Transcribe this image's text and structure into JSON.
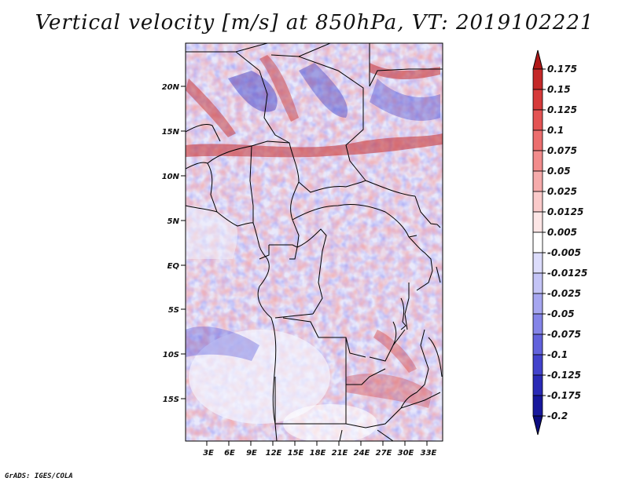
{
  "title": "Vertical velocity [m/s] at 850hPa, VT: 2019102221",
  "credit": "GrADS: IGES/COLA",
  "map": {
    "lat_labels": [
      "20N",
      "15N",
      "10N",
      "5N",
      "EQ",
      "5S",
      "10S",
      "15S"
    ],
    "lon_labels": [
      "3E",
      "6E",
      "9E",
      "12E",
      "15E",
      "18E",
      "21E",
      "24E",
      "27E",
      "30E",
      "33E"
    ]
  },
  "colorbar": {
    "labels": [
      "0.175",
      "0.15",
      "0.125",
      "0.1",
      "0.075",
      "0.05",
      "0.025",
      "0.0125",
      "0.005",
      "-0.005",
      "-0.0125",
      "-0.025",
      "-0.05",
      "-0.075",
      "-0.1",
      "-0.125",
      "-0.175",
      "-0.2"
    ],
    "colors": [
      "#b01818",
      "#c42828",
      "#d63a3a",
      "#e45454",
      "#ec6e6e",
      "#f28c8c",
      "#f6abab",
      "#facaca",
      "#fde6e6",
      "#ffffff",
      "#dcdcfb",
      "#c4c4f6",
      "#a6a6f0",
      "#8484e8",
      "#6262dc",
      "#4242cc",
      "#2a2ab6",
      "#18189c",
      "#0c0c80"
    ]
  }
}
